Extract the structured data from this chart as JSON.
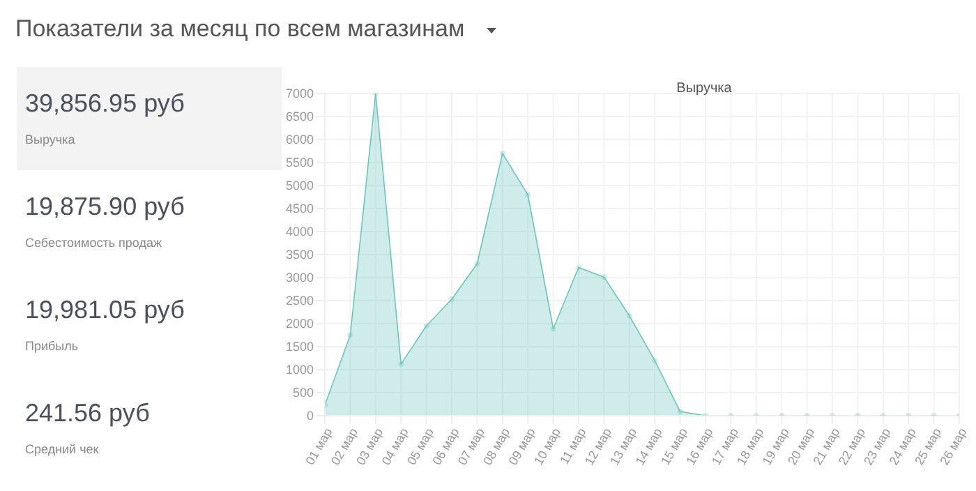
{
  "chart_data": {
    "type": "area",
    "title": "Показатели за месяц по всем магазинам",
    "annotations": [
      "39,856.95 руб",
      "Выручка",
      "19,875.90 руб",
      "Себестоимость продаж",
      "19,981.05 руб",
      "Прибыль",
      "241.56 руб",
      "Средний чек"
    ],
    "categories": [
      "01 мар",
      "02 мар",
      "03 мар",
      "04 мар",
      "05 мар",
      "06 мар",
      "07 мар",
      "08 мар",
      "09 мар",
      "10 мар",
      "11 мар",
      "12 мар",
      "13 мар",
      "14 мар",
      "15 мар",
      "16 мар",
      "17 мар",
      "18 мар",
      "19 мар",
      "20 мар",
      "21 мар",
      "22 мар",
      "23 мар",
      "24 мар",
      "25 мар",
      "26 мар"
    ],
    "series": [
      {
        "name": "Выручка",
        "color": "#6cc5bd",
        "values": [
          230,
          1750,
          7000,
          1120,
          1950,
          2530,
          3300,
          5700,
          4800,
          1890,
          3220,
          3010,
          2170,
          1200,
          90,
          0,
          0,
          0,
          0,
          0,
          0,
          0,
          0,
          0,
          0,
          0
        ]
      }
    ],
    "ylim": [
      0,
      7000
    ],
    "yticks": [
      0,
      500,
      1000,
      1500,
      2000,
      2500,
      3000,
      3500,
      4000,
      4500,
      5000,
      5500,
      6000,
      6500,
      7000
    ],
    "grid": true,
    "legend": "top",
    "marker": "circle"
  }
}
